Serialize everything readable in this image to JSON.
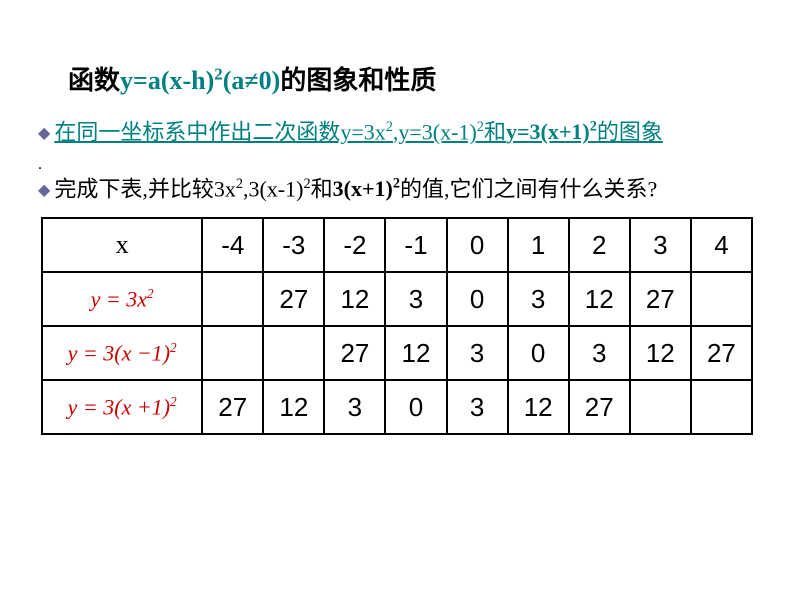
{
  "title": {
    "t1": "函数",
    "t2": "y=a(x-h)",
    "t3": "2",
    "t4": "(a≠0)",
    "t5": "的图象和性质"
  },
  "bullet1": {
    "p1": "在同一坐标系中作出二次函数y=3x",
    "sup1": "2",
    "p2": ",y=3(x-1)",
    "sup2": "2",
    "p3": "和",
    "p3b": "y=3(x+1)",
    "sup3": "2",
    "p4": "的图象"
  },
  "dotline": ".",
  "bullet2": {
    "p1": "完成下表,并比较3x",
    "sup1": "2",
    "p2": ",3(x-1)",
    "sup2": "2",
    "p3": "和",
    "p3b": "3(x+1)",
    "sup3": "2",
    "p4": "的值,它们之间有什么关系?"
  },
  "table": {
    "header": [
      "x",
      "-4",
      "-3",
      "-2",
      "-1",
      "0",
      "1",
      "2",
      "3",
      "4"
    ],
    "rows": [
      {
        "formula_a": "y",
        "formula_eq": "=",
        "formula_b": "3",
        "formula_c": "x",
        "formula_sup": "2",
        "formula_open": "",
        "formula_close": "",
        "vals": [
          "",
          "27",
          "12",
          "3",
          "0",
          "3",
          "12",
          "27",
          ""
        ]
      },
      {
        "formula_a": "y",
        "formula_eq": "=",
        "formula_b": "3",
        "formula_open": "(",
        "formula_c": "x",
        "formula_d": "−1",
        "formula_close": ")",
        "formula_sup": "2",
        "vals": [
          "",
          "",
          "27",
          "12",
          "3",
          "0",
          "3",
          "12",
          "27"
        ]
      },
      {
        "formula_a": "y",
        "formula_eq": "=",
        "formula_b": "3",
        "formula_open": "(",
        "formula_c": "x",
        "formula_d": "+1",
        "formula_close": ")",
        "formula_sup": "2",
        "vals": [
          "27",
          "12",
          "3",
          "0",
          "3",
          "12",
          "27",
          "",
          ""
        ]
      }
    ]
  },
  "colors": {
    "teal": "#008080",
    "formula_red": "#cc0000",
    "diamond": "#666699"
  }
}
